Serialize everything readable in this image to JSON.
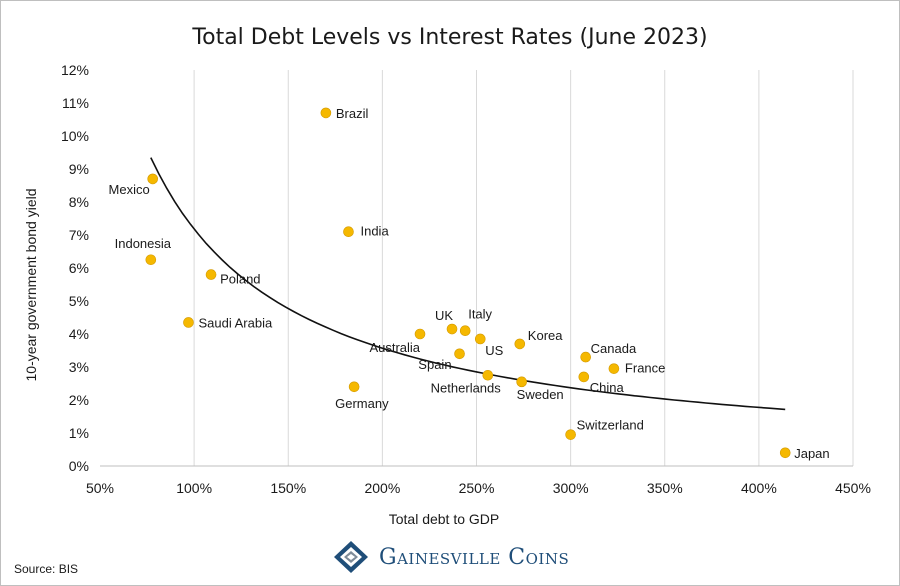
{
  "chart_data": {
    "type": "scatter",
    "title": "Total Debt Levels vs Interest Rates (June 2023)",
    "xlabel": "Total debt to GDP",
    "ylabel": "10-year government bond yield",
    "xlim": [
      50,
      450
    ],
    "ylim": [
      0,
      12
    ],
    "x_ticks": [
      "50%",
      "100%",
      "150%",
      "200%",
      "250%",
      "300%",
      "350%",
      "400%",
      "450%"
    ],
    "y_ticks": [
      "0%",
      "1%",
      "2%",
      "3%",
      "4%",
      "5%",
      "6%",
      "7%",
      "8%",
      "9%",
      "10%",
      "11%",
      "12%"
    ],
    "grid": "vertical",
    "marker_color": "#f5b800",
    "trendline": "power",
    "points": [
      {
        "label": "Brazil",
        "x": 170,
        "y": 10.7
      },
      {
        "label": "Mexico",
        "x": 78,
        "y": 8.7
      },
      {
        "label": "India",
        "x": 182,
        "y": 7.1
      },
      {
        "label": "Indonesia",
        "x": 77,
        "y": 6.25
      },
      {
        "label": "Poland",
        "x": 109,
        "y": 5.8
      },
      {
        "label": "Saudi Arabia",
        "x": 97,
        "y": 4.35
      },
      {
        "label": "Australia",
        "x": 220,
        "y": 4.0
      },
      {
        "label": "UK",
        "x": 237,
        "y": 4.15
      },
      {
        "label": "Italy",
        "x": 244,
        "y": 4.1
      },
      {
        "label": "US",
        "x": 252,
        "y": 3.85
      },
      {
        "label": "Korea",
        "x": 273,
        "y": 3.7
      },
      {
        "label": "Spain",
        "x": 241,
        "y": 3.4
      },
      {
        "label": "Canada",
        "x": 308,
        "y": 3.3
      },
      {
        "label": "France",
        "x": 323,
        "y": 2.95
      },
      {
        "label": "Netherlands",
        "x": 256,
        "y": 2.75
      },
      {
        "label": "China",
        "x": 307,
        "y": 2.7
      },
      {
        "label": "Sweden",
        "x": 274,
        "y": 2.55
      },
      {
        "label": "Germany",
        "x": 185,
        "y": 2.4
      },
      {
        "label": "Switzerland",
        "x": 300,
        "y": 0.95
      },
      {
        "label": "Japan",
        "x": 414,
        "y": 0.4
      }
    ]
  },
  "source": "Source: BIS",
  "brand": {
    "name": "Gainesville Coins",
    "logo_icon": "gainesville-coins-logo-icon",
    "color": "#1f4e79"
  }
}
